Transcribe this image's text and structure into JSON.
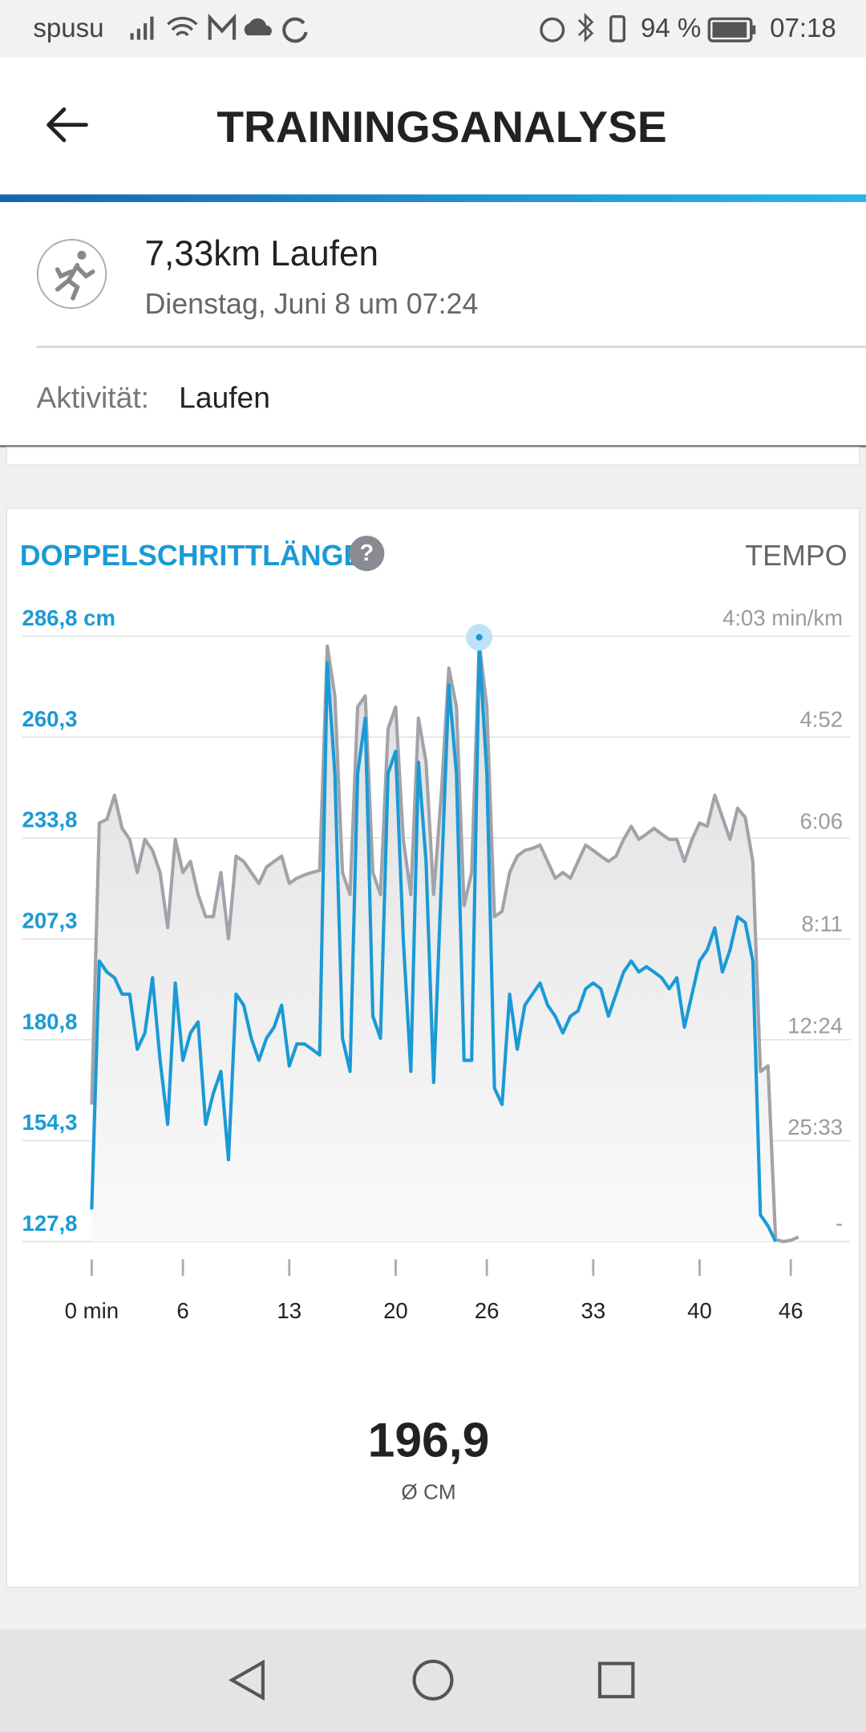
{
  "status_bar": {
    "carrier": "spusu",
    "battery": "94 %",
    "time": "07:18"
  },
  "header": {
    "title": "TRAININGSANALYSE"
  },
  "activity": {
    "title": "7,33km Laufen",
    "date": "Dienstag, Juni 8 um 07:24",
    "label": "Aktivität:",
    "value": "Laufen"
  },
  "chart_card": {
    "help_icon": "?"
  },
  "chart_data": {
    "type": "line",
    "x": [
      0,
      0.5,
      1,
      1.5,
      2,
      2.5,
      3,
      3.5,
      4,
      4.5,
      5,
      5.5,
      6,
      6.5,
      7,
      7.5,
      8,
      8.5,
      9,
      9.5,
      10,
      10.5,
      11,
      11.5,
      12,
      12.5,
      13,
      13.5,
      14,
      14.5,
      15,
      15.5,
      16,
      16.5,
      17,
      17.5,
      18,
      18.5,
      19,
      19.5,
      20,
      20.5,
      21,
      21.5,
      22,
      22.5,
      23,
      23.5,
      24,
      24.5,
      25,
      25.5,
      26,
      26.5,
      27,
      27.5,
      28,
      28.5,
      29,
      29.5,
      30,
      30.5,
      31,
      31.5,
      32,
      32.5,
      33,
      33.5,
      34,
      34.5,
      35,
      35.5,
      36,
      36.5,
      37,
      37.5,
      38,
      38.5,
      39,
      39.5,
      40,
      40.5,
      41,
      41.5,
      42,
      42.5,
      43,
      43.5,
      44,
      44.5,
      45,
      45.5,
      46,
      46.5
    ],
    "xlim": [
      -4.58,
      49.93
    ],
    "xticks": [
      {
        "value": 0,
        "label": "0 min"
      },
      6,
      13,
      20,
      26,
      33,
      40,
      46
    ],
    "ylim": [
      127.8,
      286.8
    ],
    "yticks": [
      {
        "value": 286.8,
        "label": "286,8 cm"
      },
      {
        "value": 260.3,
        "label": "260,3"
      },
      {
        "value": 233.8,
        "label": "233,8"
      },
      {
        "value": 207.3,
        "label": "207,3"
      },
      {
        "value": 180.8,
        "label": "180,8"
      },
      {
        "value": 154.3,
        "label": "154,3"
      },
      {
        "value": 127.8,
        "label": "127,8"
      }
    ],
    "y2lim": [
      0,
      14.81
    ],
    "y2ticks": [
      {
        "value": 14.81,
        "label": "4:03 min/km"
      },
      {
        "value": 12.33,
        "label": "4:52"
      },
      {
        "value": 9.84,
        "label": "6:06"
      },
      {
        "value": 7.33,
        "label": "8:11"
      },
      {
        "value": 4.84,
        "label": "12:24"
      },
      {
        "value": 2.35,
        "label": "25:33"
      },
      {
        "value": 0,
        "label": "-"
      }
    ],
    "grid": true,
    "highlight_index": 51,
    "series": [
      {
        "name": "DOPPELSCHRITTLÄNGE",
        "color": "#1a9ad6",
        "axis": "y",
        "values": [
          136.2,
          201.5,
          198.6,
          197.1,
          192.8,
          192.8,
          178.3,
          182.6,
          197.1,
          175.4,
          158.6,
          195.7,
          175.4,
          182.6,
          185.5,
          158.6,
          166.7,
          172.5,
          149.3,
          192.8,
          189.9,
          181.2,
          175.4,
          181.2,
          184.1,
          189.9,
          173.9,
          179.7,
          179.7,
          178.3,
          176.8,
          279.8,
          250.8,
          181.2,
          172.5,
          250.8,
          265.3,
          187.0,
          181.2,
          250.8,
          256.6,
          207.3,
          172.5,
          253.7,
          227.6,
          169.6,
          221.8,
          274.0,
          250.8,
          175.4,
          175.4,
          284.2,
          250.8,
          168.1,
          163.8,
          192.8,
          178.3,
          189.9,
          192.8,
          195.7,
          189.9,
          187.0,
          182.6,
          187.0,
          188.4,
          194.2,
          195.7,
          194.2,
          187.0,
          192.8,
          198.6,
          201.5,
          198.6,
          200.0,
          198.6,
          197.1,
          194.2,
          197.1,
          184.1,
          192.8,
          201.5,
          204.4,
          210.2,
          198.6,
          204.4,
          213.1,
          211.6,
          201.5,
          134.8,
          131.9,
          127.8,
          null,
          null,
          null
        ]
      },
      {
        "name": "TEMPO",
        "color": "#a2a2aa",
        "axis": "y2",
        "values": [
          3.35,
          10.24,
          10.33,
          10.92,
          10.11,
          9.84,
          9.03,
          9.84,
          9.57,
          9.03,
          7.68,
          9.84,
          9.03,
          9.3,
          8.49,
          7.95,
          7.95,
          9.03,
          7.41,
          9.43,
          9.3,
          9.03,
          8.76,
          9.16,
          9.3,
          9.43,
          8.76,
          8.89,
          8.97,
          9.03,
          9.08,
          14.57,
          13.35,
          9.03,
          8.49,
          13.08,
          13.35,
          9.03,
          8.49,
          12.54,
          13.08,
          9.84,
          8.49,
          12.81,
          11.73,
          8.49,
          10.92,
          14.03,
          13.08,
          8.22,
          9.03,
          14.65,
          13.08,
          7.95,
          8.08,
          9.03,
          9.43,
          9.57,
          9.62,
          9.7,
          9.3,
          8.89,
          9.03,
          8.89,
          9.3,
          9.7,
          9.57,
          9.43,
          9.3,
          9.43,
          9.84,
          10.16,
          9.84,
          9.97,
          10.11,
          9.97,
          9.84,
          9.84,
          9.3,
          9.84,
          10.24,
          10.16,
          10.92,
          10.38,
          9.84,
          10.6,
          10.38,
          9.3,
          4.16,
          4.3,
          0.05,
          0,
          0.03,
          0.11
        ]
      }
    ]
  },
  "summary": {
    "value": "196,9",
    "label": "Ø CM"
  }
}
